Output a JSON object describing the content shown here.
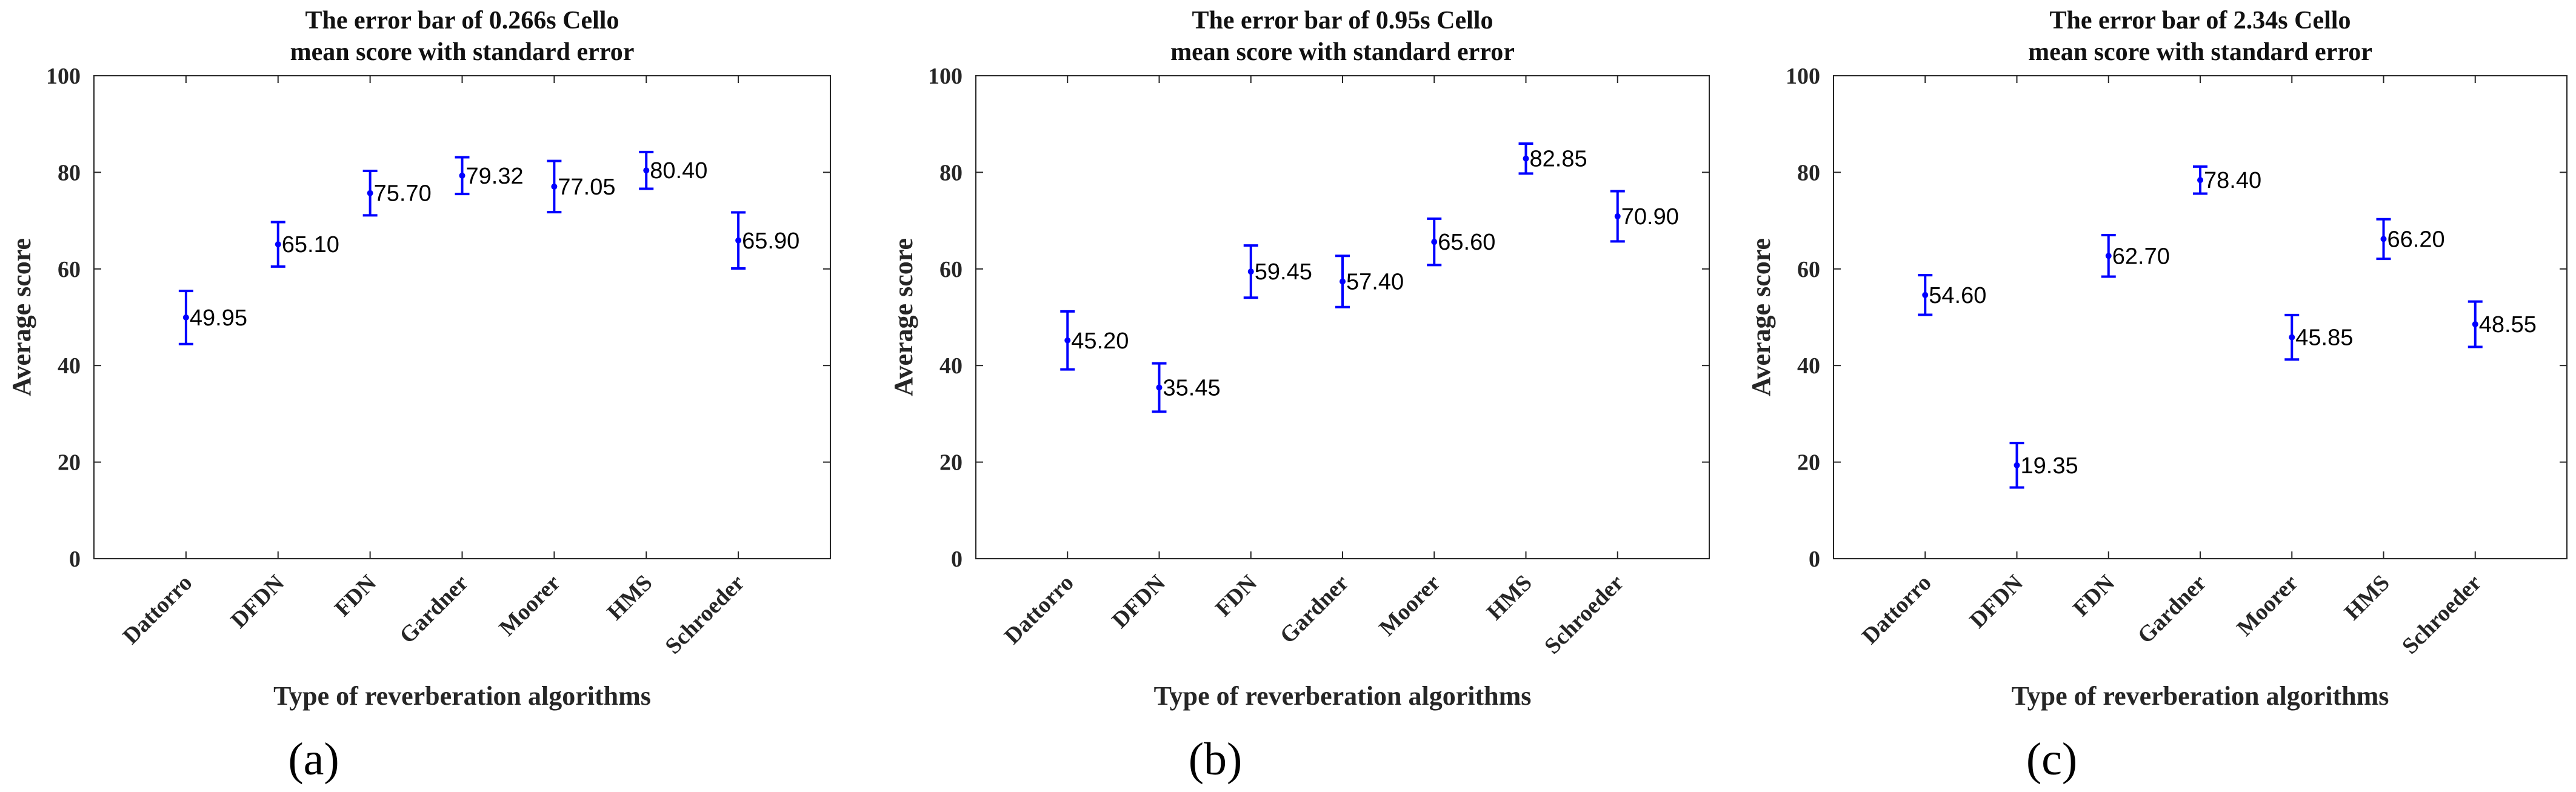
{
  "chart_data": [
    {
      "type": "errorbar",
      "panel_label": "(a)",
      "title": [
        "The error bar of 0.266s Cello",
        "mean score with standard error"
      ],
      "xlabel": "Type of reverberation algorithms",
      "ylabel": "Average score",
      "ylim": [
        0,
        100
      ],
      "yticks": [
        "0",
        "20",
        "40",
        "60",
        "80",
        "100"
      ],
      "categories": [
        "Dattorro",
        "DFDN",
        "FDN",
        "Gardner",
        "Moorer",
        "HMS",
        "Schroeder"
      ],
      "values": [
        49.95,
        65.1,
        75.7,
        79.32,
        77.05,
        80.4,
        65.9
      ],
      "value_labels": [
        "49.95",
        "65.10",
        "75.70",
        "79.32",
        "77.05",
        "80.40",
        "65.90"
      ],
      "errors": [
        5.5,
        4.6,
        4.6,
        3.8,
        5.3,
        3.8,
        5.8
      ],
      "color": "#0000ff"
    },
    {
      "type": "errorbar",
      "panel_label": "(b)",
      "title": [
        "The error bar of 0.95s Cello",
        "mean score with standard error"
      ],
      "xlabel": "Type of reverberation algorithms",
      "ylabel": "Average score",
      "ylim": [
        0,
        100
      ],
      "yticks": [
        "0",
        "20",
        "40",
        "60",
        "80",
        "100"
      ],
      "categories": [
        "Dattorro",
        "DFDN",
        "FDN",
        "Gardner",
        "Moorer",
        "HMS",
        "Schroeder"
      ],
      "values": [
        45.2,
        35.45,
        59.45,
        57.4,
        65.6,
        82.85,
        70.9
      ],
      "value_labels": [
        "45.20",
        "35.45",
        "59.45",
        "57.40",
        "65.60",
        "82.85",
        "70.90"
      ],
      "errors": [
        6.0,
        5.0,
        5.4,
        5.3,
        4.8,
        3.1,
        5.2
      ],
      "color": "#0000ff"
    },
    {
      "type": "errorbar",
      "panel_label": "(c)",
      "title": [
        "The error bar of 2.34s Cello",
        "mean score with standard error"
      ],
      "xlabel": "Type of reverberation algorithms",
      "ylabel": "Average score",
      "ylim": [
        0,
        100
      ],
      "yticks": [
        "0",
        "20",
        "40",
        "60",
        "80",
        "100"
      ],
      "categories": [
        "Dattorro",
        "DFDN",
        "FDN",
        "Gardner",
        "Moorer",
        "HMS",
        "Schroeder"
      ],
      "values": [
        54.6,
        19.35,
        62.7,
        78.4,
        45.85,
        66.2,
        48.55
      ],
      "value_labels": [
        "54.60",
        "19.35",
        "62.70",
        "78.40",
        "45.85",
        "66.20",
        "48.55"
      ],
      "errors": [
        4.1,
        4.6,
        4.3,
        2.8,
        4.6,
        4.1,
        4.7
      ],
      "color": "#0000ff"
    }
  ]
}
